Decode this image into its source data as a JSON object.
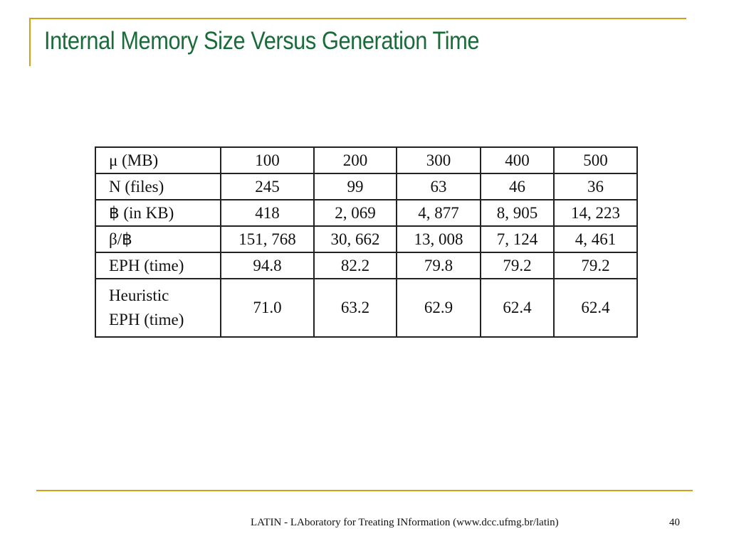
{
  "slide": {
    "title": "Internal Memory Size Versus Generation Time",
    "footer": "LATIN - LAboratory for Treating INformation (www.dcc.ufmg.br/latin)",
    "page_number": "40",
    "colors": {
      "title": "#1a6b3a",
      "accent_rule": "#d4a017"
    }
  },
  "table": {
    "rows": [
      {
        "label": "μ (MB)",
        "cells": [
          "100",
          "200",
          "300",
          "400",
          "500"
        ]
      },
      {
        "label": "N (files)",
        "cells": [
          "245",
          "99",
          "63",
          "46",
          "36"
        ]
      },
      {
        "label": "฿ (in KB)",
        "cells": [
          "418",
          "2, 069",
          "4, 877",
          "8, 905",
          "14, 223"
        ]
      },
      {
        "label": "β/฿",
        "cells": [
          "151, 768",
          "30, 662",
          "13, 008",
          "7, 124",
          "4, 461"
        ]
      },
      {
        "label": "EPH (time)",
        "cells": [
          "94.8",
          "82.2",
          "79.8",
          "79.2",
          "79.2"
        ]
      },
      {
        "label_line1": "Heuristic",
        "label_line2": "EPH (time)",
        "cells": [
          "71.0",
          "63.2",
          "62.9",
          "62.4",
          "62.4"
        ]
      }
    ]
  }
}
